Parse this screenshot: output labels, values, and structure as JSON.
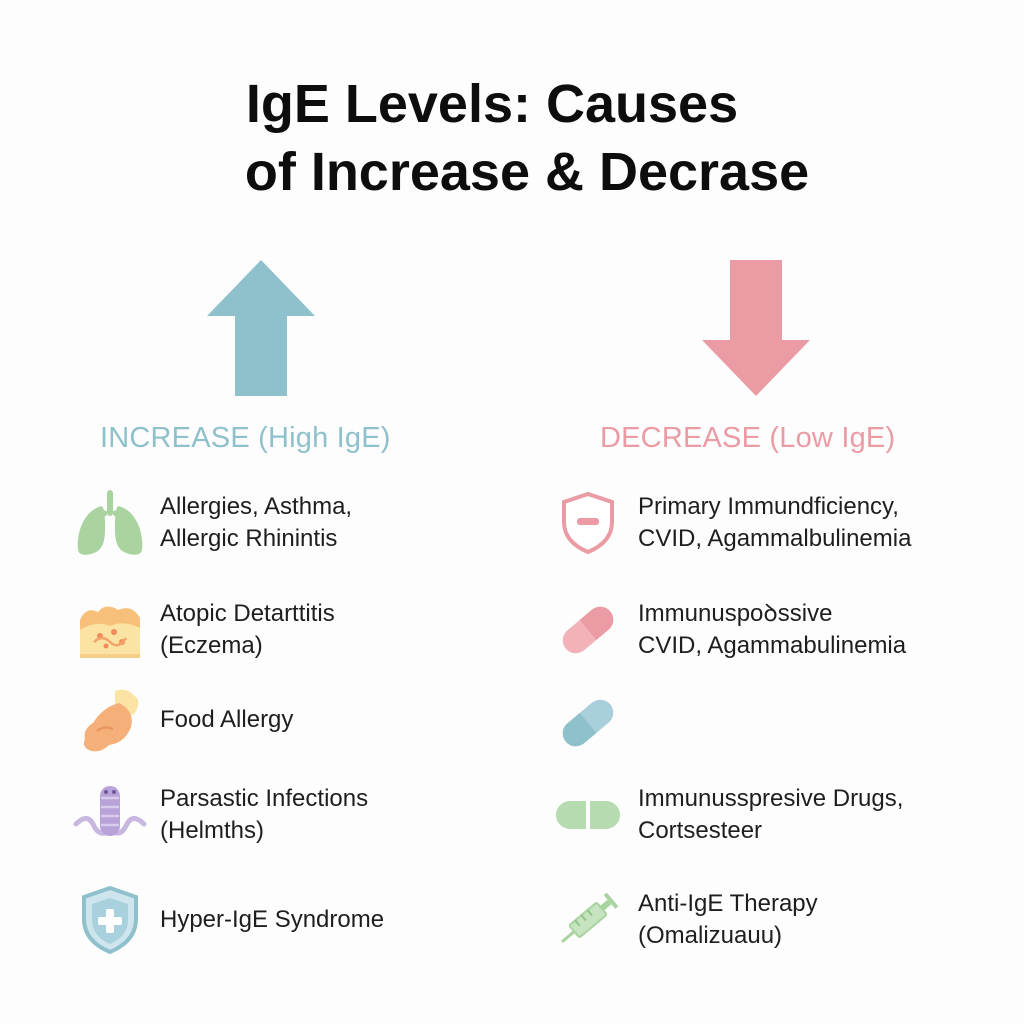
{
  "title": {
    "line1": "IgE Levels: Causes",
    "line2": "of Increase & Decrase"
  },
  "colors": {
    "increase": "#8fc1cc",
    "decrease": "#eb9ba3"
  },
  "increase": {
    "heading": "INCREASE (High IgE)",
    "items": [
      {
        "icon": "lungs-icon",
        "line1": "Allergies, Asthma,",
        "line2": "Allergic Rhinintis"
      },
      {
        "icon": "skin-rash-icon",
        "line1": "Atopic Detarttitis",
        "line2": "(Eczema)"
      },
      {
        "icon": "food-icon",
        "line1": "Food Allergy",
        "line2": ""
      },
      {
        "icon": "worm-icon",
        "line1": "Parsastic Infections",
        "line2": "(Helmths)"
      },
      {
        "icon": "shield-cross-icon",
        "line1": "Hyper-IgE Syndrome",
        "line2": ""
      }
    ]
  },
  "decrease": {
    "heading": "DECREASE (Low IgE)",
    "items": [
      {
        "icon": "shield-minus-icon",
        "line1": "Primary Immundficiency,",
        "line2": "CVID, Agammalbulinemia"
      },
      {
        "icon": "capsule-pink-icon",
        "line1": "Immunuspoꝺssive",
        "line2": "CVID, Agammabulinemia"
      },
      {
        "icon": "capsule-blue-icon",
        "line1": "",
        "line2": ""
      },
      {
        "icon": "pill-green-icon",
        "line1": "Immunusspresive Drugs,",
        "line2": "Cortsesteer"
      },
      {
        "icon": "syringe-icon",
        "line1": "Anti-IgE Therapy",
        "line2": "(Omalizuauu)"
      }
    ]
  }
}
